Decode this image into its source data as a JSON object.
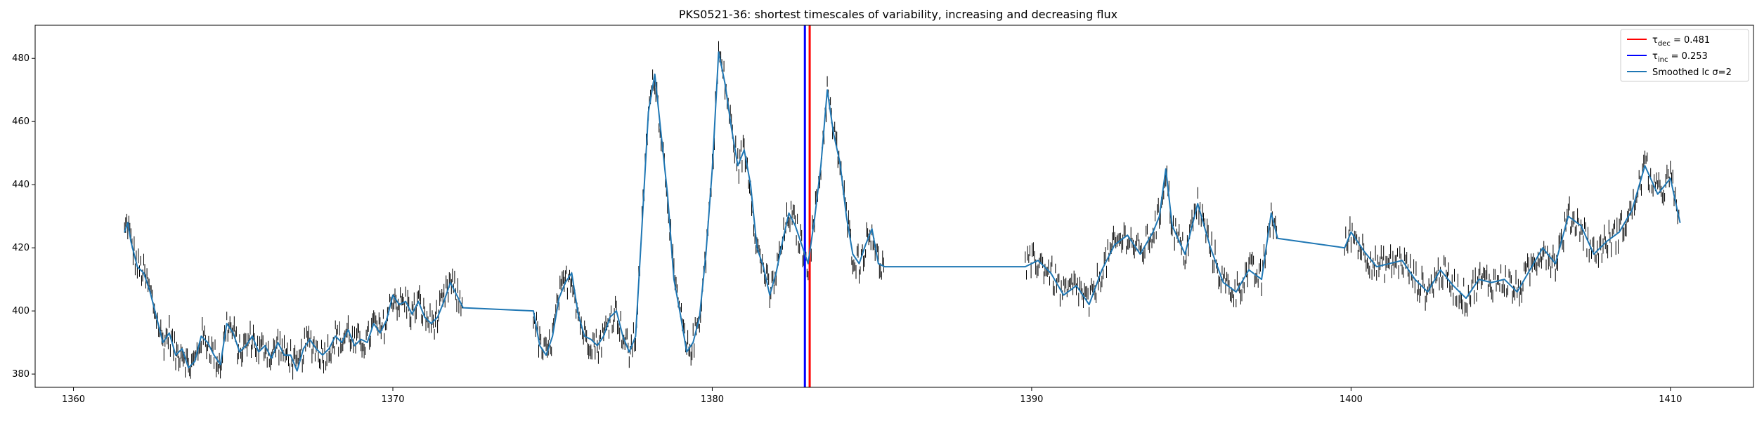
{
  "chart_data": {
    "type": "line",
    "title": "PKS0521-36: shortest timescales of variability, increasing and decreasing flux",
    "xlabel": "",
    "ylabel": "",
    "xlim": [
      1358.8,
      1412.6
    ],
    "ylim": [
      375.8,
      490.5
    ],
    "x_ticks": [
      1360,
      1370,
      1380,
      1390,
      1400,
      1410
    ],
    "y_ticks": [
      380,
      400,
      420,
      440,
      460,
      480
    ],
    "grid": false,
    "legend_position": "upper right",
    "legend": {
      "items": [
        {
          "label_main": "τ",
          "label_sub": "dec",
          "label_rest": " = 0.481",
          "color": "#ff0000",
          "kind": "line"
        },
        {
          "label_main": "τ",
          "label_sub": "inc",
          "label_rest": " = 0.253",
          "color": "#0000ff",
          "kind": "line"
        },
        {
          "label_main": "Smoothed lc σ=2",
          "label_sub": "",
          "label_rest": "",
          "color": "#1f77b4",
          "kind": "line"
        }
      ]
    },
    "vertical_lines": [
      {
        "name": "tau_dec",
        "x": 1383.05,
        "color": "#ff0000"
      },
      {
        "name": "tau_inc",
        "x": 1382.9,
        "color": "#0000ff"
      }
    ],
    "series": [
      {
        "name": "Smoothed lc σ=2",
        "color": "#1f77b4",
        "points": [
          [
            1361.6,
            425
          ],
          [
            1361.7,
            428
          ],
          [
            1361.8,
            422
          ],
          [
            1362.0,
            414
          ],
          [
            1362.2,
            412
          ],
          [
            1362.4,
            406
          ],
          [
            1362.6,
            398
          ],
          [
            1362.8,
            390
          ],
          [
            1363.0,
            393
          ],
          [
            1363.2,
            386
          ],
          [
            1363.4,
            388
          ],
          [
            1363.6,
            382
          ],
          [
            1363.8,
            384
          ],
          [
            1364.0,
            392
          ],
          [
            1364.2,
            390
          ],
          [
            1364.4,
            386
          ],
          [
            1364.6,
            383
          ],
          [
            1364.8,
            396
          ],
          [
            1365.0,
            393
          ],
          [
            1365.2,
            387
          ],
          [
            1365.4,
            389
          ],
          [
            1365.6,
            392
          ],
          [
            1365.8,
            387
          ],
          [
            1366.0,
            389
          ],
          [
            1366.2,
            385
          ],
          [
            1366.4,
            390
          ],
          [
            1366.6,
            386
          ],
          [
            1366.8,
            386
          ],
          [
            1367.0,
            381
          ],
          [
            1367.2,
            388
          ],
          [
            1367.4,
            391
          ],
          [
            1367.6,
            388
          ],
          [
            1367.8,
            386
          ],
          [
            1368.0,
            388
          ],
          [
            1368.2,
            392
          ],
          [
            1368.4,
            390
          ],
          [
            1368.6,
            394
          ],
          [
            1368.8,
            389
          ],
          [
            1369.0,
            391
          ],
          [
            1369.2,
            390
          ],
          [
            1369.4,
            396
          ],
          [
            1369.6,
            393
          ],
          [
            1369.8,
            397
          ],
          [
            1370.0,
            405
          ],
          [
            1370.2,
            402
          ],
          [
            1370.4,
            403
          ],
          [
            1370.6,
            399
          ],
          [
            1370.8,
            403
          ],
          [
            1371.0,
            398
          ],
          [
            1371.2,
            396
          ],
          [
            1371.4,
            398
          ],
          [
            1371.6,
            403
          ],
          [
            1371.8,
            409
          ],
          [
            1372.0,
            405
          ],
          [
            1372.2,
            401
          ],
          [
            1374.4,
            400
          ],
          [
            1374.6,
            389
          ],
          [
            1374.8,
            386
          ],
          [
            1375.0,
            392
          ],
          [
            1375.2,
            404
          ],
          [
            1375.4,
            409
          ],
          [
            1375.6,
            412
          ],
          [
            1375.8,
            399
          ],
          [
            1376.0,
            392
          ],
          [
            1376.2,
            391
          ],
          [
            1376.4,
            389
          ],
          [
            1376.6,
            392
          ],
          [
            1376.8,
            398
          ],
          [
            1377.0,
            400
          ],
          [
            1377.2,
            392
          ],
          [
            1377.4,
            387
          ],
          [
            1377.6,
            392
          ],
          [
            1377.8,
            427
          ],
          [
            1378.0,
            463
          ],
          [
            1378.2,
            475
          ],
          [
            1378.4,
            456
          ],
          [
            1378.6,
            437
          ],
          [
            1378.8,
            410
          ],
          [
            1379.0,
            399
          ],
          [
            1379.2,
            387
          ],
          [
            1379.4,
            390
          ],
          [
            1379.6,
            398
          ],
          [
            1379.8,
            418
          ],
          [
            1380.0,
            445
          ],
          [
            1380.2,
            482
          ],
          [
            1380.4,
            472
          ],
          [
            1380.6,
            458
          ],
          [
            1380.8,
            446
          ],
          [
            1381.0,
            451
          ],
          [
            1381.2,
            440
          ],
          [
            1381.4,
            420
          ],
          [
            1381.6,
            414
          ],
          [
            1381.8,
            405
          ],
          [
            1382.0,
            412
          ],
          [
            1382.2,
            422
          ],
          [
            1382.4,
            431
          ],
          [
            1382.6,
            427
          ],
          [
            1382.8,
            421
          ],
          [
            1383.0,
            415
          ],
          [
            1383.2,
            429
          ],
          [
            1383.4,
            446
          ],
          [
            1383.6,
            470
          ],
          [
            1383.8,
            456
          ],
          [
            1384.0,
            447
          ],
          [
            1384.2,
            430
          ],
          [
            1384.4,
            418
          ],
          [
            1384.6,
            415
          ],
          [
            1384.8,
            421
          ],
          [
            1385.0,
            426
          ],
          [
            1385.2,
            415
          ],
          [
            1385.4,
            414
          ],
          [
            1389.8,
            414
          ],
          [
            1390.2,
            416
          ],
          [
            1390.6,
            412
          ],
          [
            1391.0,
            405
          ],
          [
            1391.4,
            408
          ],
          [
            1391.8,
            402
          ],
          [
            1392.2,
            413
          ],
          [
            1392.6,
            421
          ],
          [
            1393.0,
            424
          ],
          [
            1393.4,
            418
          ],
          [
            1393.8,
            425
          ],
          [
            1394.0,
            430
          ],
          [
            1394.2,
            445
          ],
          [
            1394.4,
            427
          ],
          [
            1394.8,
            418
          ],
          [
            1395.2,
            434
          ],
          [
            1395.6,
            420
          ],
          [
            1396.0,
            409
          ],
          [
            1396.4,
            406
          ],
          [
            1396.8,
            413
          ],
          [
            1397.2,
            410
          ],
          [
            1397.5,
            431
          ],
          [
            1397.7,
            423
          ],
          [
            1399.8,
            420
          ],
          [
            1400.0,
            425
          ],
          [
            1400.4,
            419
          ],
          [
            1400.8,
            414
          ],
          [
            1401.2,
            415
          ],
          [
            1401.6,
            416
          ],
          [
            1402.0,
            410
          ],
          [
            1402.4,
            406
          ],
          [
            1402.8,
            413
          ],
          [
            1403.2,
            408
          ],
          [
            1403.6,
            404
          ],
          [
            1404.0,
            410
          ],
          [
            1404.4,
            409
          ],
          [
            1404.8,
            410
          ],
          [
            1405.2,
            406
          ],
          [
            1405.6,
            413
          ],
          [
            1406.0,
            420
          ],
          [
            1406.4,
            415
          ],
          [
            1406.8,
            430
          ],
          [
            1407.2,
            427
          ],
          [
            1407.6,
            418
          ],
          [
            1408.0,
            422
          ],
          [
            1408.4,
            425
          ],
          [
            1408.8,
            432
          ],
          [
            1409.2,
            446
          ],
          [
            1409.6,
            437
          ],
          [
            1410.0,
            442
          ],
          [
            1410.3,
            428
          ]
        ]
      }
    ]
  }
}
